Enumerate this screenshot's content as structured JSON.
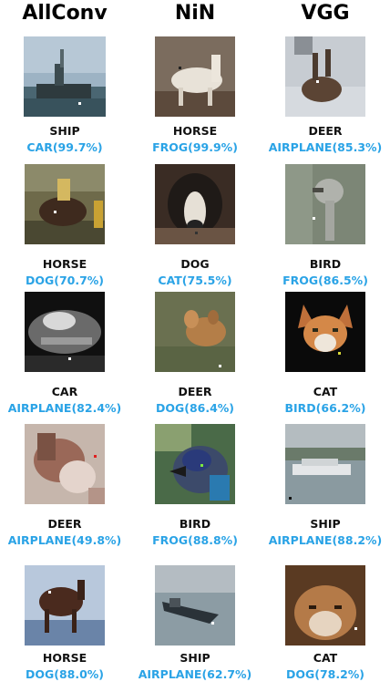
{
  "columns": [
    "AllConv",
    "NiN",
    "VGG"
  ],
  "colors": {
    "prediction": "#2aa3e6",
    "label": "#111111"
  },
  "rows": [
    [
      {
        "true_label": "SHIP",
        "prediction": "CAR(99.7%)"
      },
      {
        "true_label": "HORSE",
        "prediction": "FROG(99.9%)"
      },
      {
        "true_label": "DEER",
        "prediction": "AIRPLANE(85.3%)"
      }
    ],
    [
      {
        "true_label": "HORSE",
        "prediction": "DOG(70.7%)"
      },
      {
        "true_label": "DOG",
        "prediction": "CAT(75.5%)"
      },
      {
        "true_label": "BIRD",
        "prediction": "FROG(86.5%)"
      }
    ],
    [
      {
        "true_label": "CAR",
        "prediction": "AIRPLANE(82.4%)"
      },
      {
        "true_label": "DEER",
        "prediction": "DOG(86.4%)"
      },
      {
        "true_label": "CAT",
        "prediction": "BIRD(66.2%)"
      }
    ],
    [
      {
        "true_label": "DEER",
        "prediction": "AIRPLANE(49.8%)"
      },
      {
        "true_label": "BIRD",
        "prediction": "FROG(88.8%)"
      },
      {
        "true_label": "SHIP",
        "prediction": "AIRPLANE(88.2%)"
      }
    ],
    [
      {
        "true_label": "HORSE",
        "prediction": "DOG(88.0%)"
      },
      {
        "true_label": "SHIP",
        "prediction": "AIRPLANE(62.7%)"
      },
      {
        "true_label": "CAT",
        "prediction": "DOG(78.2%)"
      }
    ]
  ]
}
